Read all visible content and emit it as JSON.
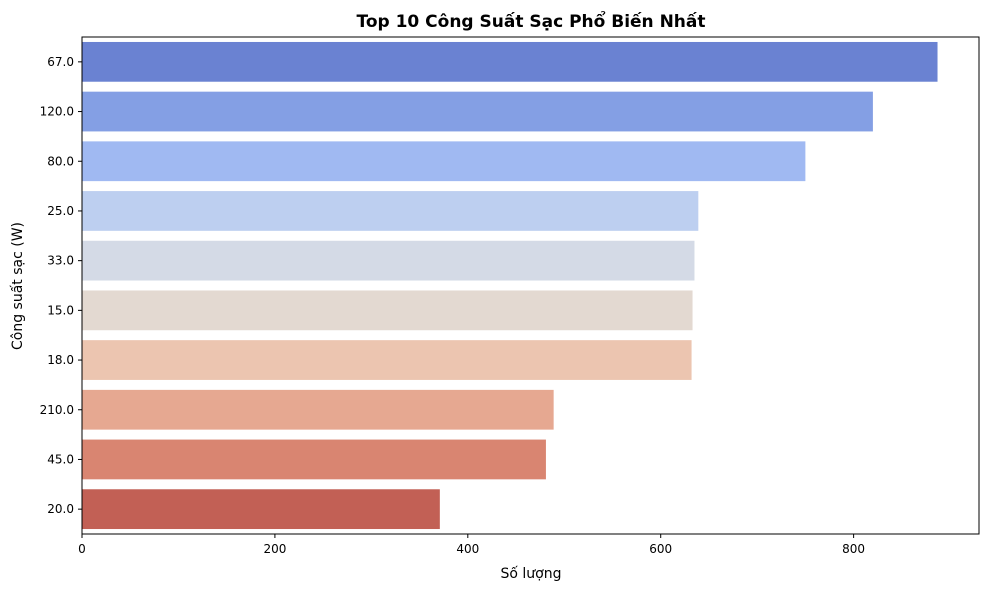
{
  "chart_data": {
    "type": "bar",
    "orientation": "horizontal",
    "title": "Top 10 Công Suất Sạc Phổ Biến Nhất",
    "xlabel": "Số lượng",
    "ylabel": "Công suất sạc (W)",
    "categories": [
      "67.0",
      "120.0",
      "80.0",
      "25.0",
      "33.0",
      "15.0",
      "18.0",
      "210.0",
      "45.0",
      "20.0"
    ],
    "values": [
      887,
      820,
      750,
      639,
      635,
      633,
      632,
      489,
      481,
      371
    ],
    "colors": [
      "#6a82d2",
      "#849fe4",
      "#a0b9f2",
      "#bdcff0",
      "#d4dae6",
      "#e3d9d1",
      "#ecc5b0",
      "#e6a891",
      "#d98571",
      "#c26055"
    ],
    "xlim": [
      0,
      930
    ],
    "xticks": [
      0,
      200,
      400,
      600,
      800
    ],
    "grid": false,
    "legend": "none"
  }
}
